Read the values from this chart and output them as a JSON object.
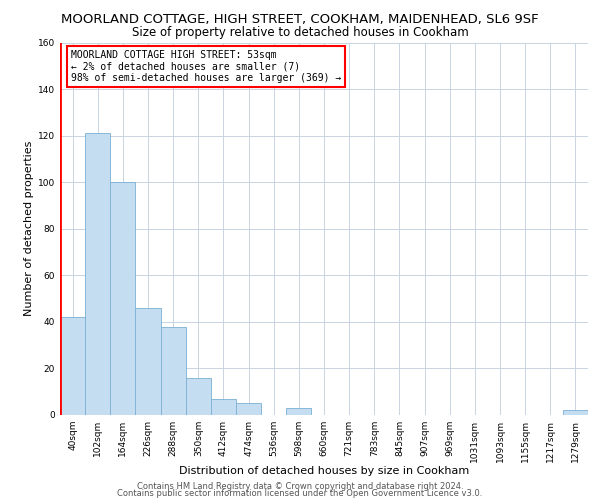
{
  "title": "MOORLAND COTTAGE, HIGH STREET, COOKHAM, MAIDENHEAD, SL6 9SF",
  "subtitle": "Size of property relative to detached houses in Cookham",
  "xlabel": "Distribution of detached houses by size in Cookham",
  "ylabel": "Number of detached properties",
  "bar_labels": [
    "40sqm",
    "102sqm",
    "164sqm",
    "226sqm",
    "288sqm",
    "350sqm",
    "412sqm",
    "474sqm",
    "536sqm",
    "598sqm",
    "660sqm",
    "721sqm",
    "783sqm",
    "845sqm",
    "907sqm",
    "969sqm",
    "1031sqm",
    "1093sqm",
    "1155sqm",
    "1217sqm",
    "1279sqm"
  ],
  "bar_values": [
    42,
    121,
    100,
    46,
    38,
    16,
    7,
    5,
    0,
    3,
    0,
    0,
    0,
    0,
    0,
    0,
    0,
    0,
    0,
    0,
    2
  ],
  "bar_color": "#c5ddf0",
  "bar_edge_color": "#7ab0d4",
  "annotation_text": "MOORLAND COTTAGE HIGH STREET: 53sqm\n← 2% of detached houses are smaller (7)\n98% of semi-detached houses are larger (369) →",
  "annotation_box_color": "#ffffff",
  "annotation_box_edge": "#ff0000",
  "ylim": [
    0,
    160
  ],
  "yticks": [
    0,
    20,
    40,
    60,
    80,
    100,
    120,
    140,
    160
  ],
  "footer_line1": "Contains HM Land Registry data © Crown copyright and database right 2024.",
  "footer_line2": "Contains public sector information licensed under the Open Government Licence v3.0.",
  "bg_color": "#ffffff",
  "grid_color": "#c8d4e0",
  "title_fontsize": 9.5,
  "subtitle_fontsize": 8.5,
  "xlabel_fontsize": 8,
  "ylabel_fontsize": 8,
  "tick_fontsize": 6.5,
  "annot_fontsize": 7,
  "footer_fontsize": 6
}
